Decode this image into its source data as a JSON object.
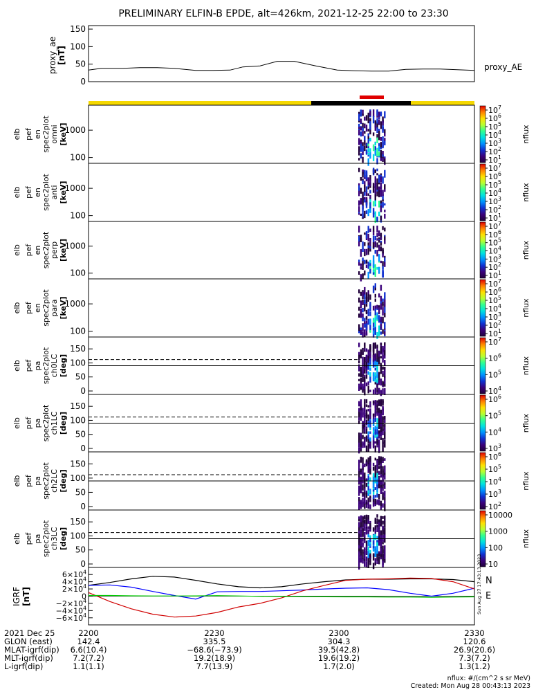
{
  "title": "PRELIMINARY ELFIN-B EPDE, alt=426km, 2021-12-25 22:00 to 23:30",
  "proxy_ae": {
    "ylabel": "proxy_ae",
    "unit": "[nT]",
    "legend": "proxy_AE",
    "yticks": [
      "150",
      "100",
      "50",
      "0"
    ]
  },
  "status_bar": {
    "colors": {
      "yellow": "#f5d800",
      "black": "#000000",
      "red": "#e00000"
    }
  },
  "panels": [
    {
      "labels": [
        "elb",
        "pef",
        "en",
        "spec2plot",
        "omni",
        "[keV]"
      ],
      "yticks": [
        "1000",
        "100"
      ],
      "cbar_ticks": [
        "10^7",
        "10^6",
        "10^5",
        "10^4",
        "10^3",
        "10^2",
        "10^1"
      ],
      "cbar_label": "nflux"
    },
    {
      "labels": [
        "elb",
        "pef",
        "en",
        "spec2plot",
        "anti",
        "[keV]"
      ],
      "yticks": [
        "1000",
        "100"
      ],
      "cbar_ticks": [
        "10^7",
        "10^6",
        "10^5",
        "10^4",
        "10^3",
        "10^2",
        "10^1"
      ],
      "cbar_label": "nflux"
    },
    {
      "labels": [
        "elb",
        "pef",
        "en",
        "spec2plot",
        "perp",
        "[keV]"
      ],
      "yticks": [
        "1000",
        "100"
      ],
      "cbar_ticks": [
        "10^7",
        "10^6",
        "10^5",
        "10^4",
        "10^3",
        "10^2",
        "10^1"
      ],
      "cbar_label": "nflux"
    },
    {
      "labels": [
        "elb",
        "pef",
        "en",
        "spec2plot",
        "para",
        "[keV]"
      ],
      "yticks": [
        "1000",
        "100"
      ],
      "cbar_ticks": [
        "10^7",
        "10^6",
        "10^5",
        "10^4",
        "10^3",
        "10^2",
        "10^1"
      ],
      "cbar_label": "nflux"
    },
    {
      "labels": [
        "elb",
        "pef",
        "pa",
        "spec2plot",
        "ch0LC",
        "[deg]"
      ],
      "yticks": [
        "150",
        "100",
        "50",
        "0"
      ],
      "cbar_ticks": [
        "10^7",
        "10^6",
        "10^5",
        "10^4"
      ],
      "cbar_label": "nflux"
    },
    {
      "labels": [
        "elb",
        "pef",
        "pa",
        "spec2plot",
        "ch1LC",
        "[deg]"
      ],
      "yticks": [
        "150",
        "100",
        "50",
        "0"
      ],
      "cbar_ticks": [
        "10^6",
        "10^5",
        "10^4",
        "10^3"
      ],
      "cbar_label": "nflux"
    },
    {
      "labels": [
        "elb",
        "pef",
        "pa",
        "spec2plot",
        "ch2LC",
        "[deg]"
      ],
      "yticks": [
        "150",
        "100",
        "50",
        "0"
      ],
      "cbar_ticks": [
        "10^6",
        "10^5",
        "10^4",
        "10^3",
        "10^2"
      ],
      "cbar_label": "nflux"
    },
    {
      "labels": [
        "elb",
        "pef",
        "pa",
        "spec2plot",
        "ch3LC",
        "[deg]"
      ],
      "yticks": [
        "150",
        "100",
        "50",
        "0"
      ],
      "cbar_ticks": [
        "10000",
        "1000",
        "100",
        "10"
      ],
      "cbar_label": "nflux"
    }
  ],
  "igrf": {
    "labels": [
      "IGRF",
      "[nT]"
    ],
    "yticks": [
      "6×10^4",
      "4×10^4",
      "2×10^4",
      "0",
      "−2×10^4",
      "−4×10^4",
      "−6×10^4"
    ],
    "legend": [
      {
        "text": "N",
        "color": "#d00000"
      },
      {
        "text": "E",
        "color": "#00cc00"
      }
    ],
    "side_note": "Sun Aug 27 17:43:13 2023"
  },
  "footer": {
    "rows": [
      {
        "label": "2021 Dec 25",
        "values": [
          "2200",
          "2230",
          "2300",
          "2330"
        ]
      },
      {
        "label": "GLON (east)",
        "values": [
          "142.4",
          "335.5",
          "304.3",
          "120.6"
        ]
      },
      {
        "label": "MLAT-igrf(dip)",
        "values": [
          "6.6(10.4)",
          "−68.6(−73.9)",
          "39.5(42.8)",
          "26.9(20.6)"
        ]
      },
      {
        "label": "MLT-igrf(dip)",
        "values": [
          "7.2(7.2)",
          "19.2(18.9)",
          "19.6(19.2)",
          "7.3(7.2)"
        ]
      },
      {
        "label": "L-igrf(dip)",
        "values": [
          "1.1(1.1)",
          "7.7(13.9)",
          "1.7(2.0)",
          "1.3(1.2)"
        ]
      }
    ],
    "note": "nflux: #/(cm^2 s sr MeV)",
    "created": "Created: Mon Aug 28 00:43:13 2023"
  },
  "chart_data": [
    {
      "type": "line",
      "title": "PRELIMINARY ELFIN-B EPDE, alt=426km, 2021-12-25 22:00 to 23:30",
      "ylabel": "proxy_ae [nT]",
      "ylim": [
        0,
        160
      ],
      "x_minutes_after_2200": [
        0,
        3,
        5,
        8,
        12,
        16,
        20,
        25,
        29,
        33,
        36,
        40,
        44,
        48,
        53,
        58,
        62,
        66,
        70,
        74,
        78,
        82,
        86,
        90
      ],
      "values": [
        33,
        38,
        38,
        38,
        40,
        40,
        38,
        32,
        32,
        33,
        42,
        45,
        58,
        58,
        45,
        33,
        31,
        30,
        30,
        35,
        36,
        36,
        34,
        32
      ],
      "series": [
        {
          "name": "proxy_AE"
        }
      ]
    },
    {
      "type": "line",
      "ylabel": "IGRF [nT]",
      "ylim": [
        -70000,
        70000
      ],
      "x_minutes_after_2200": [
        0,
        5,
        10,
        15,
        20,
        25,
        30,
        35,
        40,
        45,
        50,
        55,
        60,
        65,
        70,
        75,
        80,
        85,
        90
      ],
      "series": [
        {
          "color": "#000000",
          "values": [
            30000,
            38000,
            48000,
            55000,
            53000,
            44000,
            34000,
            26000,
            23000,
            26000,
            34000,
            40000,
            45000,
            47000,
            47000,
            48000,
            48000,
            46000,
            40000
          ]
        },
        {
          "color": "#0000ff",
          "values": [
            30000,
            31000,
            25000,
            13000,
            2000,
            -8000,
            12000,
            13000,
            13000,
            15000,
            17000,
            20000,
            22000,
            23000,
            18000,
            8000,
            0,
            8000,
            22000
          ]
        },
        {
          "color": "#d00000",
          "values": [
            10000,
            -15000,
            -35000,
            -50000,
            -58000,
            -55000,
            -45000,
            -30000,
            -20000,
            -5000,
            15000,
            30000,
            44000,
            47000,
            48000,
            50000,
            49000,
            40000,
            20000
          ]
        },
        {
          "color": "#00cc00",
          "values": [
            2000,
            2000,
            1000,
            500,
            500,
            800,
            1500,
            500,
            -500,
            -1000,
            -1500,
            -1800,
            -2000,
            -2000,
            -2500,
            -2500,
            -3000,
            -2500,
            -2000
          ]
        }
      ]
    }
  ]
}
